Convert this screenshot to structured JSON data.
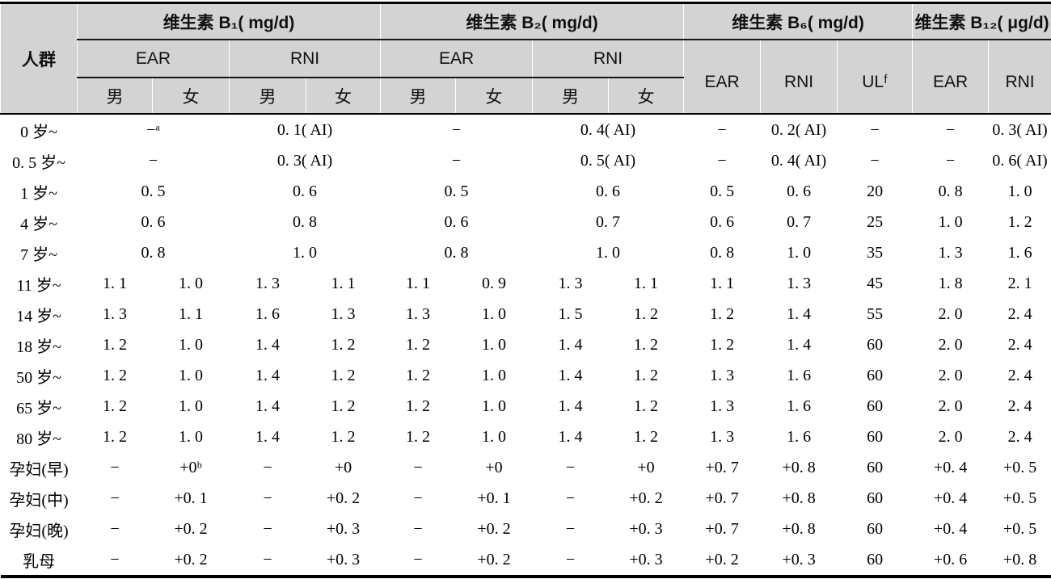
{
  "table": {
    "colors": {
      "header_bg": "#d3d3d3",
      "rule_color": "#000000",
      "body_bg": "#ffffff"
    },
    "header": {
      "population": "人群",
      "groups": [
        {
          "label": "维生素 B₁( mg/d)"
        },
        {
          "label": "维生素 B₂( mg/d)"
        },
        {
          "label": "维生素 B₆( mg/d)"
        },
        {
          "label": "维生素 B₁₂( μg/d)"
        }
      ],
      "ear": "EAR",
      "rni": "RNI",
      "ul": "ULᶠ",
      "male": "男",
      "female": "女"
    },
    "rows": [
      {
        "label": "0 岁~",
        "cells": [
          [
            "−ᵃ",
            2
          ],
          [
            "0. 1( AI)",
            2
          ],
          [
            "−",
            2
          ],
          [
            "0. 4( AI)",
            2
          ],
          "−",
          "0. 2( AI)",
          "−",
          "−",
          "0. 3( AI)"
        ]
      },
      {
        "label": "0. 5 岁~",
        "cells": [
          [
            "−",
            2
          ],
          [
            "0. 3( AI)",
            2
          ],
          [
            "−",
            2
          ],
          [
            "0. 5( AI)",
            2
          ],
          "−",
          "0. 4( AI)",
          "−",
          "−",
          "0. 6( AI)"
        ]
      },
      {
        "label": "1 岁~",
        "cells": [
          [
            "0. 5",
            2
          ],
          [
            "0. 6",
            2
          ],
          [
            "0. 5",
            2
          ],
          [
            "0. 6",
            2
          ],
          "0. 5",
          "0. 6",
          "20",
          "0. 8",
          "1. 0"
        ]
      },
      {
        "label": "4 岁~",
        "cells": [
          [
            "0. 6",
            2
          ],
          [
            "0. 8",
            2
          ],
          [
            "0. 6",
            2
          ],
          [
            "0. 7",
            2
          ],
          "0. 6",
          "0. 7",
          "25",
          "1. 0",
          "1. 2"
        ]
      },
      {
        "label": "7 岁~",
        "cells": [
          [
            "0. 8",
            2
          ],
          [
            "1. 0",
            2
          ],
          [
            "0. 8",
            2
          ],
          [
            "1. 0",
            2
          ],
          "0. 8",
          "1. 0",
          "35",
          "1. 3",
          "1. 6"
        ]
      },
      {
        "label": "11 岁~",
        "cells": [
          "1. 1",
          "1. 0",
          "1. 3",
          "1. 1",
          "1. 1",
          "0. 9",
          "1. 3",
          "1. 1",
          "1. 1",
          "1. 3",
          "45",
          "1. 8",
          "2. 1"
        ]
      },
      {
        "label": "14 岁~",
        "cells": [
          "1. 3",
          "1. 1",
          "1. 6",
          "1. 3",
          "1. 3",
          "1. 0",
          "1. 5",
          "1. 2",
          "1. 2",
          "1. 4",
          "55",
          "2. 0",
          "2. 4"
        ]
      },
      {
        "label": "18 岁~",
        "cells": [
          "1. 2",
          "1. 0",
          "1. 4",
          "1. 2",
          "1. 2",
          "1. 0",
          "1. 4",
          "1. 2",
          "1. 2",
          "1. 4",
          "60",
          "2. 0",
          "2. 4"
        ]
      },
      {
        "label": "50 岁~",
        "cells": [
          "1. 2",
          "1. 0",
          "1. 4",
          "1. 2",
          "1. 2",
          "1. 0",
          "1. 4",
          "1. 2",
          "1. 3",
          "1. 6",
          "60",
          "2. 0",
          "2. 4"
        ]
      },
      {
        "label": "65 岁~",
        "cells": [
          "1. 2",
          "1. 0",
          "1. 4",
          "1. 2",
          "1. 2",
          "1. 0",
          "1. 4",
          "1. 2",
          "1. 3",
          "1. 6",
          "60",
          "2. 0",
          "2. 4"
        ]
      },
      {
        "label": "80 岁~",
        "cells": [
          "1. 2",
          "1. 0",
          "1. 4",
          "1. 2",
          "1. 2",
          "1. 0",
          "1. 4",
          "1. 2",
          "1. 3",
          "1. 6",
          "60",
          "2. 0",
          "2. 4"
        ]
      },
      {
        "label": "孕妇(早)",
        "cells": [
          "−",
          "+0ᵇ",
          "−",
          "+0",
          "−",
          "+0",
          "−",
          "+0",
          "+0. 7",
          "+0. 8",
          "60",
          "+0. 4",
          "+0. 5"
        ]
      },
      {
        "label": "孕妇(中)",
        "cells": [
          "−",
          "+0. 1",
          "−",
          "+0. 2",
          "−",
          "+0. 1",
          "−",
          "+0. 2",
          "+0. 7",
          "+0. 8",
          "60",
          "+0. 4",
          "+0. 5"
        ]
      },
      {
        "label": "孕妇(晚)",
        "cells": [
          "−",
          "+0. 2",
          "−",
          "+0. 3",
          "−",
          "+0. 2",
          "−",
          "+0. 3",
          "+0. 7",
          "+0. 8",
          "60",
          "+0. 4",
          "+0. 5"
        ]
      },
      {
        "label": "乳母",
        "cells": [
          "−",
          "+0. 2",
          "−",
          "+0. 3",
          "−",
          "+0. 2",
          "−",
          "+0. 3",
          "+0. 2",
          "+0. 3",
          "60",
          "+0. 6",
          "+0. 8"
        ]
      }
    ]
  }
}
